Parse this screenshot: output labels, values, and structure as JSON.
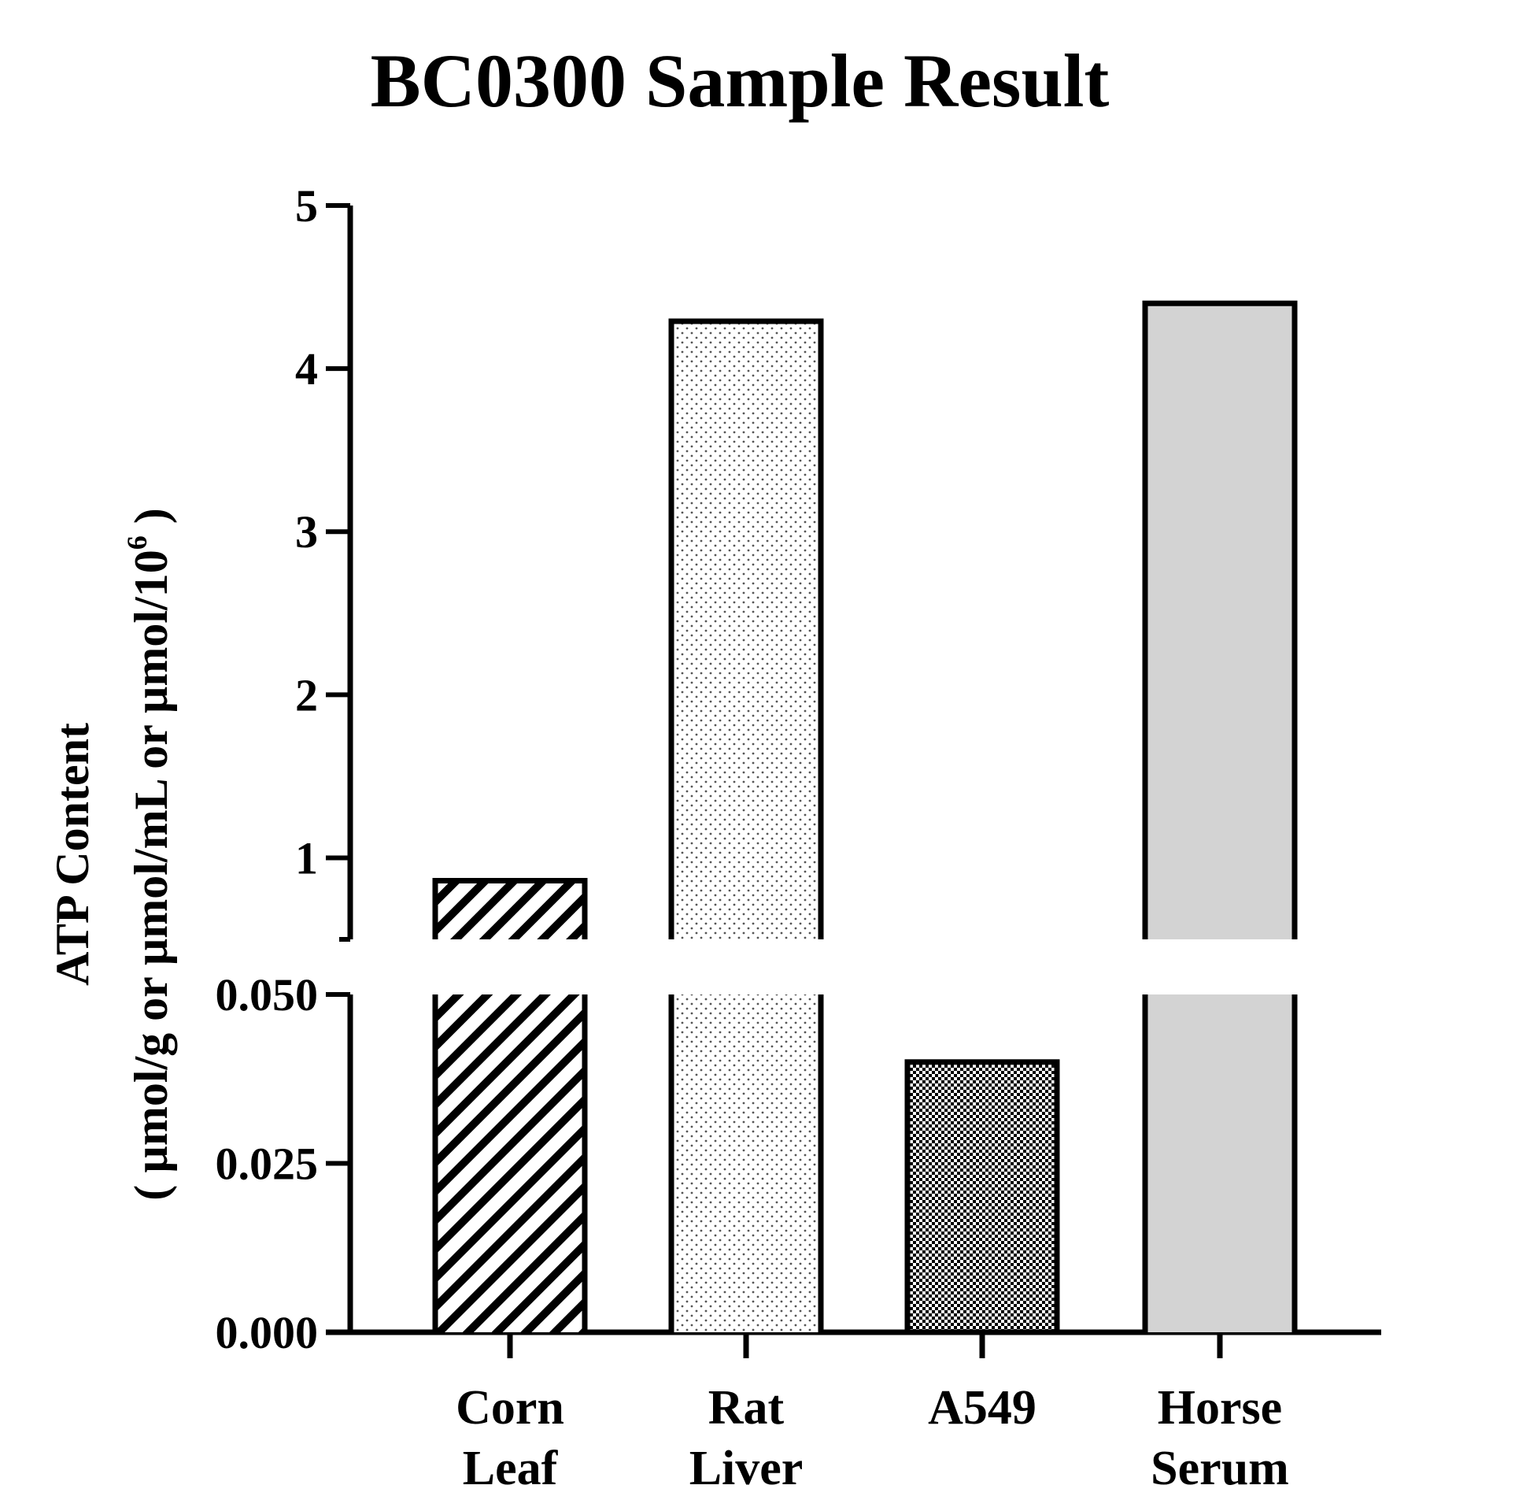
{
  "chart_data": {
    "type": "bar",
    "title": "BC0300 Sample Result",
    "ylabel_line1": "ATP Content",
    "ylabel_line2_main": "( µmol/g or µmol/mL or µmol/10",
    "ylabel_line2_sup": "6",
    "ylabel_line2_end": " )",
    "xlabel": "",
    "categories": [
      {
        "line1": "Corn",
        "line2": "Leaf"
      },
      {
        "line1": "Rat",
        "line2": "Liver"
      },
      {
        "line1": "A549",
        "line2": ""
      },
      {
        "line1": "Horse",
        "line2": "Serum"
      }
    ],
    "values": [
      0.86,
      4.29,
      0.04,
      4.4
    ],
    "fill_patterns": [
      "diagonal-hatch",
      "fine-dots",
      "checkerboard",
      "solid-lightgray"
    ],
    "colors": {
      "solid_fill": "#d3d3d3",
      "outline": "#000000"
    },
    "y_axis": {
      "broken": true,
      "lower_segment": {
        "range": [
          0,
          0.05
        ],
        "ticks": [
          "0.000",
          "0.025",
          "0.050"
        ]
      },
      "upper_segment": {
        "range": [
          0.5,
          5
        ],
        "ticks": [
          "1",
          "2",
          "3",
          "4",
          "5"
        ]
      }
    },
    "grid": false,
    "legend": "none"
  }
}
